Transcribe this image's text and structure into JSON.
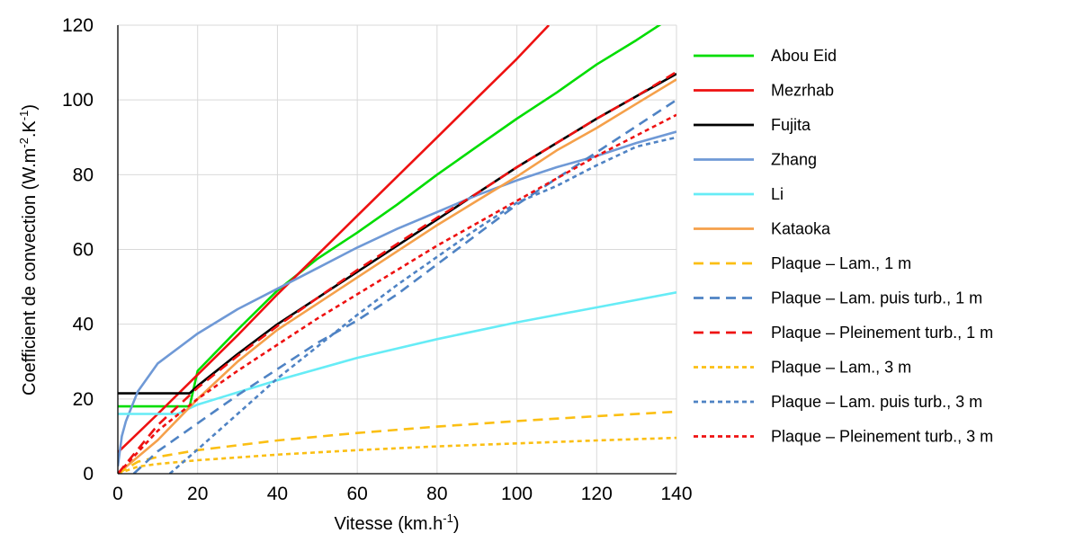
{
  "chart_data": {
    "type": "line",
    "xlabel": "Vitesse (km.h",
    "xlabel_sup": "-1",
    "xlabel_end": ")",
    "ylabel": "Coefficient de convection (W.m",
    "ylabel_sup1": "-2",
    "ylabel_mid": ".K",
    "ylabel_sup2": "-1",
    "ylabel_end": ")",
    "xlim": [
      0,
      140
    ],
    "ylim": [
      0,
      120
    ],
    "xticks": [
      "0",
      "20",
      "40",
      "60",
      "80",
      "100",
      "120",
      "140"
    ],
    "yticks": [
      "0",
      "20",
      "40",
      "60",
      "80",
      "100",
      "120"
    ],
    "grid": true,
    "legend_position": "right",
    "series": [
      {
        "name": "Abou Eid",
        "color": "#00dd00",
        "dash": "solid",
        "x": [
          0,
          18,
          20,
          30,
          40,
          50,
          60,
          70,
          80,
          90,
          100,
          110,
          120,
          130,
          140
        ],
        "y": [
          18,
          18,
          27.5,
          38.5,
          49,
          57.5,
          64.5,
          72,
          80,
          87.5,
          95,
          102,
          109.5,
          116,
          123
        ]
      },
      {
        "name": "Mezrhab",
        "color": "#ee1111",
        "dash": "solid",
        "x": [
          0,
          10,
          20,
          30,
          40,
          50,
          60,
          70,
          80,
          90,
          100,
          108
        ],
        "y": [
          5.7,
          16,
          26.5,
          37,
          48,
          58.5,
          69,
          79.5,
          90,
          100.5,
          111,
          120
        ]
      },
      {
        "name": "Fujita",
        "color": "#000000",
        "dash": "solid",
        "x": [
          0,
          18,
          20,
          30,
          40,
          50,
          60,
          70,
          80,
          90,
          100,
          110,
          120,
          130,
          140
        ],
        "y": [
          21.5,
          21.5,
          23.5,
          32,
          40,
          47,
          54,
          61,
          68,
          75,
          82,
          88.5,
          95,
          101,
          107
        ]
      },
      {
        "name": "Zhang",
        "color": "#6f99d6",
        "dash": "solid",
        "x": [
          0,
          1,
          2,
          5,
          10,
          20,
          30,
          40,
          50,
          60,
          70,
          80,
          90,
          100,
          110,
          120,
          130,
          140
        ],
        "y": [
          2,
          10,
          14,
          22,
          29.5,
          37.5,
          44,
          49.5,
          55,
          60.5,
          65.5,
          70,
          74.5,
          78.5,
          82,
          85,
          88.5,
          91.5
        ]
      },
      {
        "name": "Li",
        "color": "#66ecf6",
        "dash": "solid",
        "x": [
          0,
          15,
          20,
          40,
          60,
          80,
          100,
          120,
          140
        ],
        "y": [
          16,
          16,
          18.5,
          25,
          31,
          36,
          40.5,
          44.5,
          48.5
        ]
      },
      {
        "name": "Kataoka",
        "color": "#f5a04a",
        "dash": "solid",
        "x": [
          0,
          10,
          20,
          30,
          40,
          50,
          60,
          70,
          80,
          90,
          100,
          110,
          120,
          130,
          140
        ],
        "y": [
          0,
          9,
          20,
          30,
          38.5,
          45.5,
          52.5,
          59.5,
          66.5,
          73,
          79.5,
          86.5,
          92.5,
          99,
          105.5
        ]
      },
      {
        "name": "Plaque – Lam., 1 m",
        "color": "#fbbf13",
        "dash": "long",
        "x": [
          0,
          5,
          10,
          20,
          40,
          60,
          80,
          100,
          120,
          140
        ],
        "y": [
          0,
          3.2,
          4.5,
          6.3,
          8.9,
          10.9,
          12.6,
          14.1,
          15.4,
          16.6
        ]
      },
      {
        "name": "Plaque – Lam. puis turb., 1 m",
        "color": "#4f83c4",
        "dash": "long",
        "x": [
          4,
          10,
          20,
          30,
          40,
          50,
          60,
          70,
          80,
          90,
          100,
          110,
          120,
          130,
          140
        ],
        "y": [
          0,
          6,
          13.5,
          21,
          28,
          35,
          41,
          48,
          56,
          64,
          72,
          79,
          86,
          93,
          100
        ]
      },
      {
        "name": "Plaque – Pleinement turb., 1 m",
        "color": "#ee1111",
        "dash": "long",
        "x": [
          0,
          10,
          20,
          30,
          40,
          50,
          60,
          70,
          80,
          90,
          100,
          110,
          120,
          130,
          140
        ],
        "y": [
          0,
          13,
          23,
          31.5,
          39.5,
          47,
          54.5,
          61.5,
          68.5,
          75,
          82,
          88.5,
          95,
          101,
          107.5
        ]
      },
      {
        "name": "Plaque – Lam., 3 m",
        "color": "#fbbf13",
        "dash": "short",
        "x": [
          0,
          5,
          10,
          20,
          40,
          60,
          80,
          100,
          120,
          140
        ],
        "y": [
          0,
          1.9,
          2.6,
          3.6,
          5.1,
          6.3,
          7.3,
          8.1,
          8.9,
          9.6
        ]
      },
      {
        "name": "Plaque – Lam. puis turb., 3 m",
        "color": "#4f83c4",
        "dash": "short",
        "x": [
          13,
          20,
          30,
          40,
          50,
          60,
          70,
          80,
          90,
          100,
          110,
          120,
          130,
          140
        ],
        "y": [
          0,
          6.5,
          16,
          25.5,
          34,
          42.5,
          50.5,
          58,
          65.5,
          72.5,
          77,
          82.5,
          87.5,
          90
        ]
      },
      {
        "name": "Plaque – Pleinement turb., 3 m",
        "color": "#ee1111",
        "dash": "short",
        "x": [
          0,
          10,
          20,
          30,
          40,
          50,
          60,
          70,
          80,
          90,
          100,
          110,
          120,
          130,
          140
        ],
        "y": [
          0,
          11.5,
          20,
          27.5,
          34.5,
          41.5,
          48,
          54.5,
          61,
          67,
          73,
          79,
          85,
          90.5,
          96
        ]
      }
    ]
  }
}
